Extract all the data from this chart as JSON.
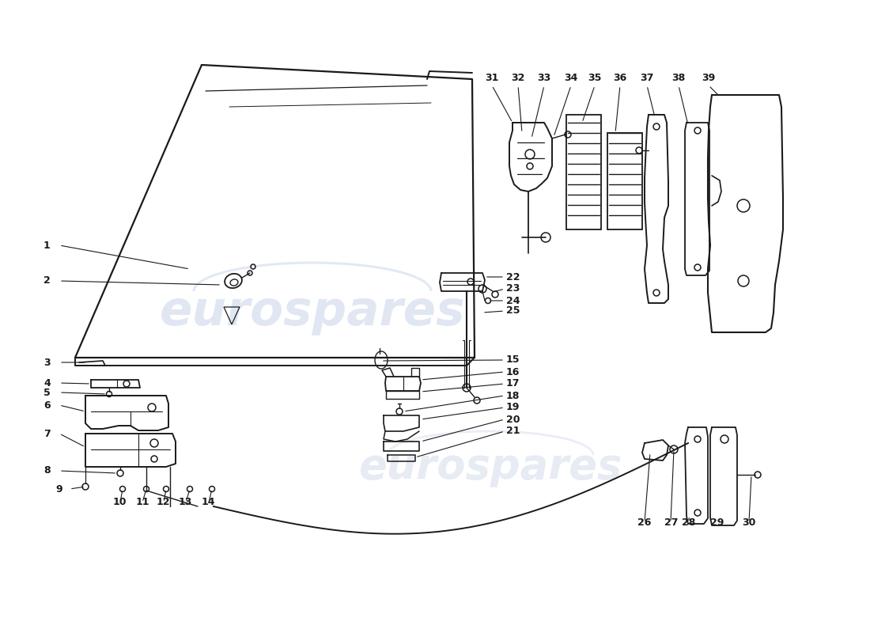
{
  "background_color": "#ffffff",
  "line_color": "#1a1a1a",
  "watermark_color": "#c8d4e8",
  "watermark_text": "eurospares"
}
